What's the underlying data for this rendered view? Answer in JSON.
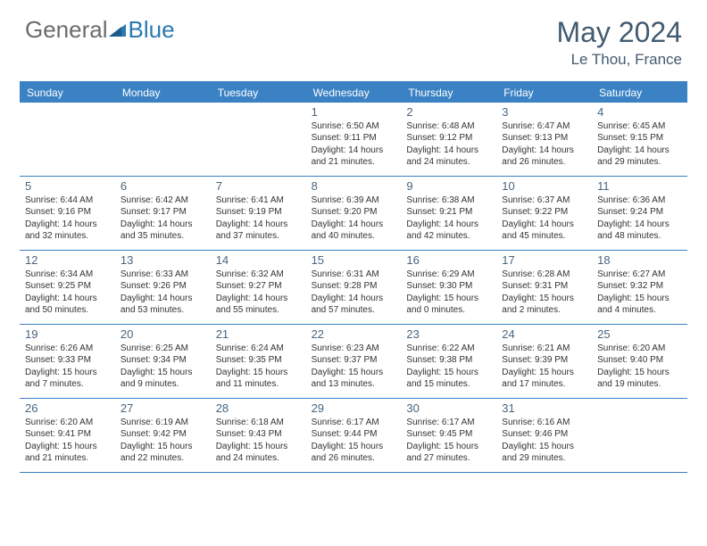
{
  "brand": {
    "part1": "General",
    "part2": "Blue"
  },
  "colors": {
    "header_bar": "#3b82c4",
    "brand_gray": "#6b6b6b",
    "brand_blue": "#2a7ab0",
    "title_color": "#425b71",
    "day_num_color": "#48657e",
    "text_color": "#333333",
    "background": "#ffffff"
  },
  "title": "May 2024",
  "location": "Le Thou, France",
  "day_headers": [
    "Sunday",
    "Monday",
    "Tuesday",
    "Wednesday",
    "Thursday",
    "Friday",
    "Saturday"
  ],
  "weeks": [
    [
      {
        "day": "",
        "sunrise": "",
        "sunset": "",
        "dl1": "",
        "dl2": "",
        "empty": true
      },
      {
        "day": "",
        "sunrise": "",
        "sunset": "",
        "dl1": "",
        "dl2": "",
        "empty": true
      },
      {
        "day": "",
        "sunrise": "",
        "sunset": "",
        "dl1": "",
        "dl2": "",
        "empty": true
      },
      {
        "day": "1",
        "sunrise": "Sunrise: 6:50 AM",
        "sunset": "Sunset: 9:11 PM",
        "dl1": "Daylight: 14 hours",
        "dl2": "and 21 minutes."
      },
      {
        "day": "2",
        "sunrise": "Sunrise: 6:48 AM",
        "sunset": "Sunset: 9:12 PM",
        "dl1": "Daylight: 14 hours",
        "dl2": "and 24 minutes."
      },
      {
        "day": "3",
        "sunrise": "Sunrise: 6:47 AM",
        "sunset": "Sunset: 9:13 PM",
        "dl1": "Daylight: 14 hours",
        "dl2": "and 26 minutes."
      },
      {
        "day": "4",
        "sunrise": "Sunrise: 6:45 AM",
        "sunset": "Sunset: 9:15 PM",
        "dl1": "Daylight: 14 hours",
        "dl2": "and 29 minutes."
      }
    ],
    [
      {
        "day": "5",
        "sunrise": "Sunrise: 6:44 AM",
        "sunset": "Sunset: 9:16 PM",
        "dl1": "Daylight: 14 hours",
        "dl2": "and 32 minutes."
      },
      {
        "day": "6",
        "sunrise": "Sunrise: 6:42 AM",
        "sunset": "Sunset: 9:17 PM",
        "dl1": "Daylight: 14 hours",
        "dl2": "and 35 minutes."
      },
      {
        "day": "7",
        "sunrise": "Sunrise: 6:41 AM",
        "sunset": "Sunset: 9:19 PM",
        "dl1": "Daylight: 14 hours",
        "dl2": "and 37 minutes."
      },
      {
        "day": "8",
        "sunrise": "Sunrise: 6:39 AM",
        "sunset": "Sunset: 9:20 PM",
        "dl1": "Daylight: 14 hours",
        "dl2": "and 40 minutes."
      },
      {
        "day": "9",
        "sunrise": "Sunrise: 6:38 AM",
        "sunset": "Sunset: 9:21 PM",
        "dl1": "Daylight: 14 hours",
        "dl2": "and 42 minutes."
      },
      {
        "day": "10",
        "sunrise": "Sunrise: 6:37 AM",
        "sunset": "Sunset: 9:22 PM",
        "dl1": "Daylight: 14 hours",
        "dl2": "and 45 minutes."
      },
      {
        "day": "11",
        "sunrise": "Sunrise: 6:36 AM",
        "sunset": "Sunset: 9:24 PM",
        "dl1": "Daylight: 14 hours",
        "dl2": "and 48 minutes."
      }
    ],
    [
      {
        "day": "12",
        "sunrise": "Sunrise: 6:34 AM",
        "sunset": "Sunset: 9:25 PM",
        "dl1": "Daylight: 14 hours",
        "dl2": "and 50 minutes."
      },
      {
        "day": "13",
        "sunrise": "Sunrise: 6:33 AM",
        "sunset": "Sunset: 9:26 PM",
        "dl1": "Daylight: 14 hours",
        "dl2": "and 53 minutes."
      },
      {
        "day": "14",
        "sunrise": "Sunrise: 6:32 AM",
        "sunset": "Sunset: 9:27 PM",
        "dl1": "Daylight: 14 hours",
        "dl2": "and 55 minutes."
      },
      {
        "day": "15",
        "sunrise": "Sunrise: 6:31 AM",
        "sunset": "Sunset: 9:28 PM",
        "dl1": "Daylight: 14 hours",
        "dl2": "and 57 minutes."
      },
      {
        "day": "16",
        "sunrise": "Sunrise: 6:29 AM",
        "sunset": "Sunset: 9:30 PM",
        "dl1": "Daylight: 15 hours",
        "dl2": "and 0 minutes."
      },
      {
        "day": "17",
        "sunrise": "Sunrise: 6:28 AM",
        "sunset": "Sunset: 9:31 PM",
        "dl1": "Daylight: 15 hours",
        "dl2": "and 2 minutes."
      },
      {
        "day": "18",
        "sunrise": "Sunrise: 6:27 AM",
        "sunset": "Sunset: 9:32 PM",
        "dl1": "Daylight: 15 hours",
        "dl2": "and 4 minutes."
      }
    ],
    [
      {
        "day": "19",
        "sunrise": "Sunrise: 6:26 AM",
        "sunset": "Sunset: 9:33 PM",
        "dl1": "Daylight: 15 hours",
        "dl2": "and 7 minutes."
      },
      {
        "day": "20",
        "sunrise": "Sunrise: 6:25 AM",
        "sunset": "Sunset: 9:34 PM",
        "dl1": "Daylight: 15 hours",
        "dl2": "and 9 minutes."
      },
      {
        "day": "21",
        "sunrise": "Sunrise: 6:24 AM",
        "sunset": "Sunset: 9:35 PM",
        "dl1": "Daylight: 15 hours",
        "dl2": "and 11 minutes."
      },
      {
        "day": "22",
        "sunrise": "Sunrise: 6:23 AM",
        "sunset": "Sunset: 9:37 PM",
        "dl1": "Daylight: 15 hours",
        "dl2": "and 13 minutes."
      },
      {
        "day": "23",
        "sunrise": "Sunrise: 6:22 AM",
        "sunset": "Sunset: 9:38 PM",
        "dl1": "Daylight: 15 hours",
        "dl2": "and 15 minutes."
      },
      {
        "day": "24",
        "sunrise": "Sunrise: 6:21 AM",
        "sunset": "Sunset: 9:39 PM",
        "dl1": "Daylight: 15 hours",
        "dl2": "and 17 minutes."
      },
      {
        "day": "25",
        "sunrise": "Sunrise: 6:20 AM",
        "sunset": "Sunset: 9:40 PM",
        "dl1": "Daylight: 15 hours",
        "dl2": "and 19 minutes."
      }
    ],
    [
      {
        "day": "26",
        "sunrise": "Sunrise: 6:20 AM",
        "sunset": "Sunset: 9:41 PM",
        "dl1": "Daylight: 15 hours",
        "dl2": "and 21 minutes."
      },
      {
        "day": "27",
        "sunrise": "Sunrise: 6:19 AM",
        "sunset": "Sunset: 9:42 PM",
        "dl1": "Daylight: 15 hours",
        "dl2": "and 22 minutes."
      },
      {
        "day": "28",
        "sunrise": "Sunrise: 6:18 AM",
        "sunset": "Sunset: 9:43 PM",
        "dl1": "Daylight: 15 hours",
        "dl2": "and 24 minutes."
      },
      {
        "day": "29",
        "sunrise": "Sunrise: 6:17 AM",
        "sunset": "Sunset: 9:44 PM",
        "dl1": "Daylight: 15 hours",
        "dl2": "and 26 minutes."
      },
      {
        "day": "30",
        "sunrise": "Sunrise: 6:17 AM",
        "sunset": "Sunset: 9:45 PM",
        "dl1": "Daylight: 15 hours",
        "dl2": "and 27 minutes."
      },
      {
        "day": "31",
        "sunrise": "Sunrise: 6:16 AM",
        "sunset": "Sunset: 9:46 PM",
        "dl1": "Daylight: 15 hours",
        "dl2": "and 29 minutes."
      },
      {
        "day": "",
        "sunrise": "",
        "sunset": "",
        "dl1": "",
        "dl2": "",
        "empty": true
      }
    ]
  ]
}
